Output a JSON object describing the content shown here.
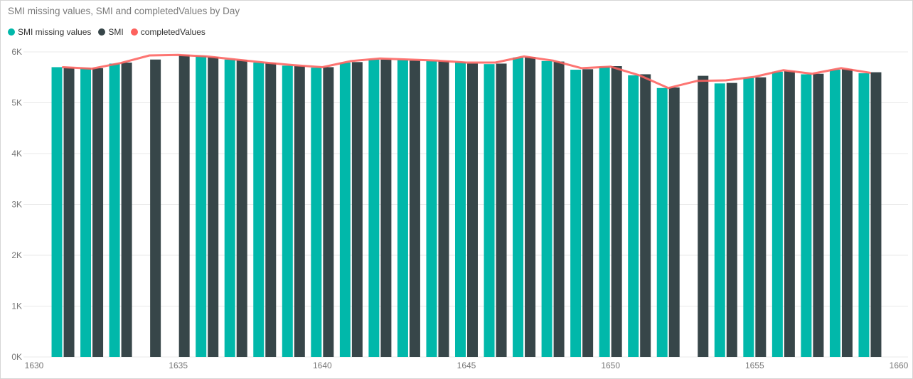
{
  "title": "SMI missing values, SMI and completedValues by Day",
  "legend": [
    {
      "label": "SMI missing values",
      "color": "#01B8AA"
    },
    {
      "label": "SMI",
      "color": "#374649"
    },
    {
      "label": "completedValues",
      "color": "#FD625E"
    }
  ],
  "colors": {
    "bar_teal": "#01B8AA",
    "bar_dark": "#374649",
    "line_red": "#FD625E",
    "title_text": "#7A7A7A",
    "axis_text": "#777777",
    "legend_text": "#333333",
    "gridline": "#EAEAEA",
    "frame_border": "#D5D5D5"
  },
  "chart_data": {
    "type": "bar+line",
    "title": "SMI missing values, SMI and completedValues by Day",
    "x_field": "Day",
    "x_ticks": [
      1630,
      1635,
      1640,
      1645,
      1650,
      1655,
      1660
    ],
    "y_ticks": [
      0,
      1000,
      2000,
      3000,
      4000,
      5000,
      6000
    ],
    "y_tick_labels": [
      "0K",
      "1K",
      "2K",
      "3K",
      "4K",
      "5K",
      "6K"
    ],
    "ylim": [
      0,
      6000
    ],
    "xlim": [
      1630,
      1660
    ],
    "grid": "horizontal",
    "legend_position": "top-left",
    "days": [
      1631,
      1632,
      1633,
      1634,
      1635,
      1636,
      1637,
      1638,
      1639,
      1640,
      1641,
      1642,
      1643,
      1644,
      1645,
      1646,
      1647,
      1648,
      1649,
      1650,
      1651,
      1652,
      1653,
      1654,
      1655,
      1656,
      1657,
      1658,
      1659
    ],
    "series": [
      {
        "name": "SMI missing values",
        "type": "bar",
        "color": "#01B8AA",
        "values": [
          5700,
          5680,
          5770,
          null,
          null,
          5920,
          5850,
          5790,
          5730,
          5690,
          5790,
          5850,
          5840,
          5820,
          5800,
          5760,
          5890,
          5820,
          5650,
          5710,
          5540,
          5290,
          null,
          5380,
          5490,
          5610,
          5560,
          5650,
          5580
        ]
      },
      {
        "name": "SMI",
        "type": "bar",
        "color": "#374649",
        "values": [
          5690,
          5680,
          5790,
          5850,
          5940,
          5900,
          5840,
          5780,
          5720,
          5700,
          5800,
          5850,
          5830,
          5820,
          5770,
          5770,
          5900,
          5810,
          5660,
          5720,
          5560,
          5300,
          5530,
          5390,
          5500,
          5620,
          5570,
          5660,
          5600
        ]
      },
      {
        "name": "completedValues",
        "type": "line",
        "color": "#FD625E",
        "values": [
          5700,
          5670,
          5780,
          5930,
          5940,
          5910,
          5850,
          5790,
          5740,
          5700,
          5820,
          5870,
          5850,
          5830,
          5790,
          5790,
          5910,
          5830,
          5680,
          5710,
          5540,
          5290,
          5430,
          5440,
          5510,
          5640,
          5570,
          5680,
          5590
        ]
      }
    ]
  }
}
